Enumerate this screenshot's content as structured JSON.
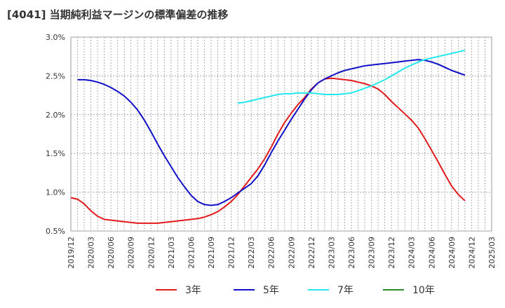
{
  "chart_data": {
    "type": "line",
    "title": "[4041]  当期純利益マージンの標準偏差の推移",
    "xlabel": "",
    "ylabel": "",
    "ylim": [
      0.5,
      3.0
    ],
    "yticks": [
      "0.5%",
      "1.0%",
      "1.5%",
      "2.0%",
      "2.5%",
      "3.0%"
    ],
    "ytick_values": [
      0.5,
      1.0,
      1.5,
      2.0,
      2.5,
      3.0
    ],
    "xticks": [
      "2019/12",
      "2020/03",
      "2020/06",
      "2020/09",
      "2020/12",
      "2021/03",
      "2021/06",
      "2021/09",
      "2021/12",
      "2022/03",
      "2022/06",
      "2022/09",
      "2022/12",
      "2023/03",
      "2023/06",
      "2023/09",
      "2023/12",
      "2024/03",
      "2024/06",
      "2024/09",
      "2024/12",
      "2025/03"
    ],
    "grid": true,
    "legend_position": "bottom",
    "series": [
      {
        "name": "3年",
        "color": "#e31a1c",
        "points": [
          [
            0,
            0.93
          ],
          [
            1,
            0.91
          ],
          [
            2,
            0.85
          ],
          [
            3,
            0.76
          ],
          [
            4,
            0.69
          ],
          [
            5,
            0.65
          ],
          [
            6,
            0.64
          ],
          [
            7,
            0.63
          ],
          [
            8,
            0.62
          ],
          [
            9,
            0.61
          ],
          [
            10,
            0.6
          ],
          [
            11,
            0.6
          ],
          [
            12,
            0.6
          ],
          [
            13,
            0.6
          ],
          [
            14,
            0.61
          ],
          [
            15,
            0.62
          ],
          [
            16,
            0.63
          ],
          [
            17,
            0.64
          ],
          [
            18,
            0.65
          ],
          [
            19,
            0.66
          ],
          [
            20,
            0.68
          ],
          [
            21,
            0.71
          ],
          [
            22,
            0.75
          ],
          [
            23,
            0.81
          ],
          [
            24,
            0.88
          ],
          [
            25,
            0.97
          ],
          [
            26,
            1.08
          ],
          [
            27,
            1.19
          ],
          [
            28,
            1.3
          ],
          [
            29,
            1.43
          ],
          [
            30,
            1.58
          ],
          [
            31,
            1.75
          ],
          [
            32,
            1.9
          ],
          [
            33,
            2.02
          ],
          [
            34,
            2.13
          ],
          [
            35,
            2.22
          ],
          [
            36,
            2.33
          ],
          [
            37,
            2.41
          ],
          [
            38,
            2.46
          ],
          [
            39,
            2.47
          ],
          [
            40,
            2.46
          ],
          [
            41,
            2.45
          ],
          [
            42,
            2.44
          ],
          [
            43,
            2.42
          ],
          [
            44,
            2.4
          ],
          [
            45,
            2.37
          ],
          [
            46,
            2.33
          ],
          [
            47,
            2.26
          ],
          [
            48,
            2.17
          ],
          [
            49,
            2.09
          ],
          [
            50,
            2.01
          ],
          [
            51,
            1.93
          ],
          [
            52,
            1.83
          ],
          [
            53,
            1.69
          ],
          [
            54,
            1.54
          ],
          [
            55,
            1.39
          ],
          [
            56,
            1.23
          ],
          [
            57,
            1.08
          ],
          [
            58,
            0.97
          ],
          [
            59,
            0.89
          ]
        ]
      },
      {
        "name": "5年",
        "color": "#1010c8",
        "points": [
          [
            1,
            2.45
          ],
          [
            2,
            2.45
          ],
          [
            3,
            2.44
          ],
          [
            4,
            2.42
          ],
          [
            5,
            2.39
          ],
          [
            6,
            2.35
          ],
          [
            7,
            2.3
          ],
          [
            8,
            2.24
          ],
          [
            9,
            2.16
          ],
          [
            10,
            2.06
          ],
          [
            11,
            1.93
          ],
          [
            12,
            1.78
          ],
          [
            13,
            1.62
          ],
          [
            14,
            1.47
          ],
          [
            15,
            1.33
          ],
          [
            16,
            1.19
          ],
          [
            17,
            1.07
          ],
          [
            18,
            0.96
          ],
          [
            19,
            0.88
          ],
          [
            20,
            0.84
          ],
          [
            21,
            0.83
          ],
          [
            22,
            0.84
          ],
          [
            23,
            0.88
          ],
          [
            24,
            0.93
          ],
          [
            25,
            0.99
          ],
          [
            26,
            1.05
          ],
          [
            27,
            1.11
          ],
          [
            28,
            1.21
          ],
          [
            29,
            1.35
          ],
          [
            30,
            1.51
          ],
          [
            31,
            1.66
          ],
          [
            32,
            1.8
          ],
          [
            33,
            1.94
          ],
          [
            34,
            2.07
          ],
          [
            35,
            2.2
          ],
          [
            36,
            2.32
          ],
          [
            37,
            2.41
          ],
          [
            38,
            2.46
          ],
          [
            39,
            2.5
          ],
          [
            40,
            2.54
          ],
          [
            41,
            2.57
          ],
          [
            42,
            2.59
          ],
          [
            43,
            2.61
          ],
          [
            44,
            2.63
          ],
          [
            45,
            2.64
          ],
          [
            46,
            2.65
          ],
          [
            47,
            2.66
          ],
          [
            48,
            2.67
          ],
          [
            49,
            2.68
          ],
          [
            50,
            2.69
          ],
          [
            51,
            2.7
          ],
          [
            52,
            2.71
          ],
          [
            53,
            2.7
          ],
          [
            54,
            2.68
          ],
          [
            55,
            2.65
          ],
          [
            56,
            2.61
          ],
          [
            57,
            2.57
          ],
          [
            58,
            2.54
          ],
          [
            59,
            2.51
          ]
        ]
      },
      {
        "name": "7年",
        "color": "#22e8ee",
        "points": [
          [
            25,
            2.15
          ],
          [
            26,
            2.16
          ],
          [
            27,
            2.18
          ],
          [
            28,
            2.2
          ],
          [
            29,
            2.22
          ],
          [
            30,
            2.24
          ],
          [
            31,
            2.26
          ],
          [
            32,
            2.27
          ],
          [
            33,
            2.27
          ],
          [
            34,
            2.28
          ],
          [
            35,
            2.28
          ],
          [
            36,
            2.28
          ],
          [
            37,
            2.27
          ],
          [
            38,
            2.26
          ],
          [
            39,
            2.26
          ],
          [
            40,
            2.26
          ],
          [
            41,
            2.27
          ],
          [
            42,
            2.28
          ],
          [
            43,
            2.31
          ],
          [
            44,
            2.34
          ],
          [
            45,
            2.37
          ],
          [
            46,
            2.41
          ],
          [
            47,
            2.45
          ],
          [
            48,
            2.5
          ],
          [
            49,
            2.55
          ],
          [
            50,
            2.6
          ],
          [
            51,
            2.64
          ],
          [
            52,
            2.68
          ],
          [
            53,
            2.71
          ],
          [
            54,
            2.73
          ],
          [
            55,
            2.75
          ],
          [
            56,
            2.77
          ],
          [
            57,
            2.79
          ],
          [
            58,
            2.81
          ],
          [
            59,
            2.83
          ]
        ]
      },
      {
        "name": "10年",
        "color": "#2a8a2a",
        "points": []
      }
    ]
  }
}
